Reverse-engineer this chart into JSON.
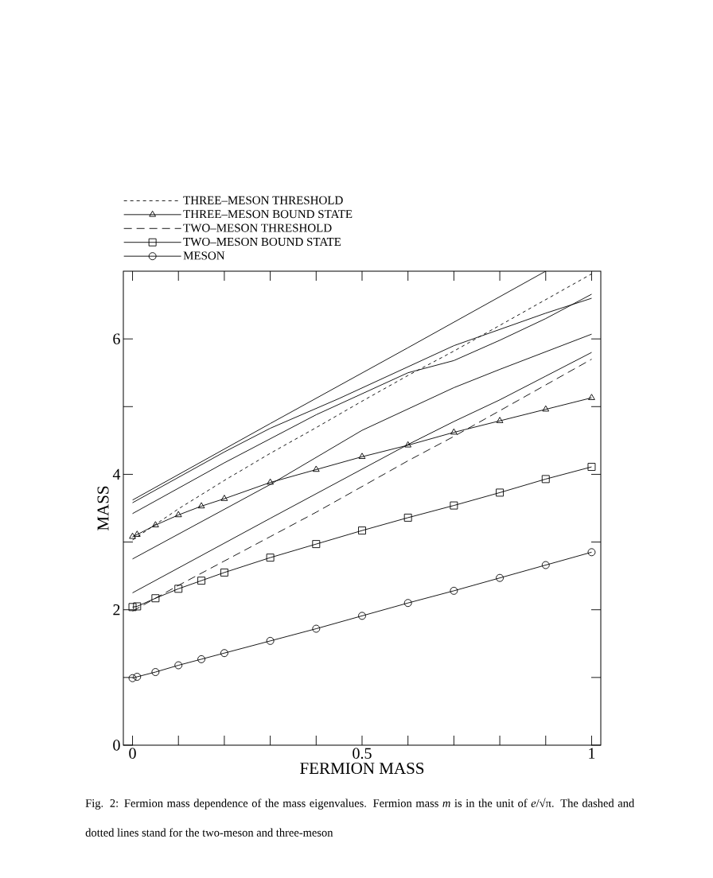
{
  "chart_data": {
    "type": "line",
    "xlabel": "FERMION MASS",
    "ylabel": "MASS",
    "xlim": [
      -0.02,
      1.02
    ],
    "ylim": [
      0,
      7
    ],
    "xticks": [
      0,
      {
        "value": 0.1,
        "label": null
      },
      {
        "value": 0.2,
        "label": null
      },
      {
        "value": 0.3,
        "label": null
      },
      {
        "value": 0.4,
        "label": null
      },
      0.5,
      {
        "value": 0.6,
        "label": null
      },
      {
        "value": 0.7,
        "label": null
      },
      {
        "value": 0.8,
        "label": null
      },
      {
        "value": 0.9,
        "label": null
      },
      1
    ],
    "yticks": [
      0,
      {
        "value": 1,
        "label": null
      },
      2,
      {
        "value": 3,
        "label": null
      },
      4,
      {
        "value": 5,
        "label": null
      },
      6
    ],
    "legend": "top left",
    "series": [
      {
        "name": "THREE–MESON THRESHOLD",
        "color": "#000000",
        "line_style": "dotted",
        "marker": "none",
        "x": [
          0,
          0.1,
          0.2,
          0.3,
          0.4,
          0.5,
          0.6,
          0.7,
          0.8,
          0.9,
          1
        ],
        "values": [
          3.03,
          3.49,
          3.91,
          4.31,
          4.69,
          5.08,
          5.46,
          5.82,
          6.2,
          6.58,
          6.96
        ]
      },
      {
        "name": "THREE–MESON BOUND STATE",
        "color": "#000000",
        "line_style": "solid",
        "marker": "triangle",
        "x": [
          0,
          0.01,
          0.05,
          0.1,
          0.15,
          0.2,
          0.3,
          0.4,
          0.5,
          0.6,
          0.7,
          0.8,
          0.9,
          1
        ],
        "values": [
          3.08,
          3.11,
          3.25,
          3.4,
          3.53,
          3.64,
          3.88,
          4.07,
          4.26,
          4.43,
          4.62,
          4.79,
          4.96,
          5.13
        ]
      },
      {
        "name": "TWO–MESON THRESHOLD",
        "color": "#000000",
        "line_style": "dashed",
        "marker": "none",
        "x": [
          0,
          0.1,
          0.2,
          0.3,
          0.4,
          0.5,
          0.6,
          0.7,
          0.8,
          0.9,
          1
        ],
        "values": [
          1.98,
          2.36,
          2.72,
          3.08,
          3.44,
          3.82,
          4.2,
          4.56,
          4.94,
          5.32,
          5.7
        ]
      },
      {
        "name": "TWO–MESON BOUND STATE",
        "color": "#000000",
        "line_style": "solid",
        "marker": "square",
        "x": [
          0,
          0.01,
          0.05,
          0.1,
          0.15,
          0.2,
          0.3,
          0.4,
          0.5,
          0.6,
          0.7,
          0.8,
          0.9,
          1
        ],
        "values": [
          2.04,
          2.05,
          2.17,
          2.31,
          2.43,
          2.55,
          2.77,
          2.97,
          3.17,
          3.36,
          3.54,
          3.73,
          3.93,
          4.11
        ]
      },
      {
        "name": "MESON",
        "color": "#000000",
        "line_style": "solid",
        "marker": "circle",
        "x": [
          0,
          0.01,
          0.05,
          0.1,
          0.15,
          0.2,
          0.3,
          0.4,
          0.5,
          0.6,
          0.7,
          0.8,
          0.9,
          1
        ],
        "values": [
          0.99,
          1.01,
          1.08,
          1.18,
          1.27,
          1.36,
          1.54,
          1.72,
          1.91,
          2.1,
          2.28,
          2.47,
          2.66,
          2.85
        ]
      },
      {
        "color": "#000000",
        "line_style": "solid",
        "marker": "none",
        "x": [
          0,
          0.3,
          0.6,
          0.9
        ],
        "values": [
          3.62,
          4.75,
          5.87,
          7.0
        ]
      },
      {
        "color": "#000000",
        "line_style": "solid",
        "marker": "none",
        "x": [
          0,
          0.2,
          0.3,
          0.45,
          0.7,
          0.9,
          1
        ],
        "values": [
          3.58,
          4.33,
          4.68,
          5.12,
          5.9,
          6.38,
          6.6
        ]
      },
      {
        "color": "#000000",
        "line_style": "solid",
        "marker": "none",
        "x": [
          0,
          0.2,
          0.4,
          0.6,
          0.7,
          0.8,
          0.9,
          1
        ],
        "values": [
          3.42,
          4.17,
          4.88,
          5.5,
          5.68,
          5.98,
          6.3,
          6.66
        ]
      },
      {
        "color": "#000000",
        "line_style": "solid",
        "marker": "none",
        "x": [
          0,
          0.3,
          0.5,
          0.7,
          0.8,
          1
        ],
        "values": [
          2.75,
          3.85,
          4.65,
          5.28,
          5.55,
          6.07
        ]
      },
      {
        "color": "#000000",
        "line_style": "solid",
        "marker": "none",
        "x": [
          0,
          0.3,
          0.6,
          0.7,
          0.8,
          0.9,
          1
        ],
        "values": [
          2.25,
          3.35,
          4.44,
          4.78,
          5.1,
          5.45,
          5.8
        ]
      }
    ],
    "annotations": [
      "Fig. 2: Fermion mass dependence of the mass eigenvalues. Fermion mass *m* is in the unit of *e*/√π. The dashed and dotted lines stand for the two-meson and three-meson"
    ]
  }
}
